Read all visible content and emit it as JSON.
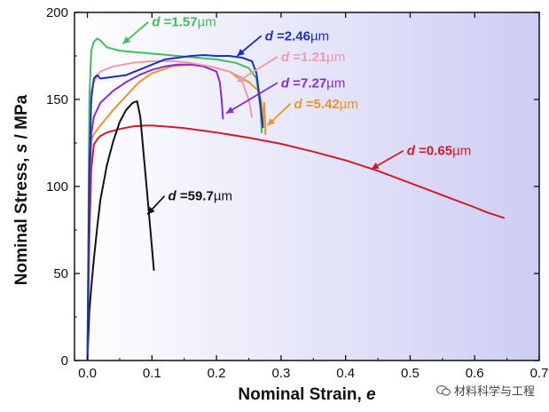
{
  "chart_data": {
    "type": "line",
    "title": "",
    "xlabel_prefix": "Nominal Strain, ",
    "xlabel_symbol": "e",
    "ylabel_prefix": "Nominal Stress, ",
    "ylabel_symbol": "s",
    "ylabel_suffix": " / MPa",
    "xlim": [
      -0.02,
      0.7
    ],
    "ylim": [
      0,
      200
    ],
    "xticks": [
      0.0,
      0.1,
      0.2,
      0.3,
      0.4,
      0.5,
      0.6,
      0.7
    ],
    "xtick_labels": [
      "0.0",
      "0.1",
      "0.2",
      "0.3",
      "0.4",
      "0.5",
      "0.6",
      "0.7"
    ],
    "yticks": [
      0,
      50,
      100,
      150,
      200
    ],
    "ytick_labels": [
      "0",
      "50",
      "100",
      "150",
      "200"
    ],
    "series": [
      {
        "name": "d =0.65µm",
        "label_prefix": "d",
        "label_value": " =0.65",
        "label_unit": "µm",
        "color": "#d11a2a",
        "x": [
          0,
          0.003,
          0.006,
          0.01,
          0.015,
          0.02,
          0.03,
          0.05,
          0.07,
          0.09,
          0.1,
          0.12,
          0.15,
          0.2,
          0.25,
          0.3,
          0.35,
          0.4,
          0.45,
          0.5,
          0.55,
          0.6,
          0.62,
          0.645
        ],
        "y": [
          0,
          70,
          110,
          124,
          127,
          129,
          131,
          133,
          134.5,
          135,
          135,
          134.5,
          133.5,
          131,
          128,
          124.5,
          120,
          115,
          109,
          102,
          95,
          88,
          85,
          82
        ]
      },
      {
        "name": "d =59.7µm",
        "label_prefix": "d",
        "label_value": " =59.7",
        "label_unit": "µm",
        "color": "#111111",
        "x": [
          0,
          0.003,
          0.006,
          0.01,
          0.015,
          0.02,
          0.03,
          0.04,
          0.05,
          0.06,
          0.07,
          0.077,
          0.082,
          0.088,
          0.094,
          0.1,
          0.103
        ],
        "y": [
          0,
          28,
          42,
          58,
          76,
          92,
          112,
          126,
          137,
          144,
          148,
          149,
          140,
          115,
          90,
          65,
          52
        ]
      },
      {
        "name": "d =5.42µm",
        "label_prefix": "d",
        "label_value": " =5.42",
        "label_unit": "µm",
        "color": "#e8952c",
        "x": [
          0,
          0.003,
          0.006,
          0.01,
          0.02,
          0.04,
          0.06,
          0.08,
          0.1,
          0.13,
          0.16,
          0.19,
          0.22,
          0.25,
          0.265,
          0.27,
          0.272,
          0.274,
          0.276
        ],
        "y": [
          0,
          100,
          126,
          130,
          135,
          144,
          152,
          160,
          165,
          169,
          170,
          169,
          166,
          160,
          155,
          148,
          135,
          148,
          130
        ]
      },
      {
        "name": "d =7.27µm",
        "label_prefix": "d",
        "label_value": " =7.27",
        "label_unit": "µm",
        "color": "#8a2ad3",
        "x": [
          0,
          0.003,
          0.006,
          0.01,
          0.02,
          0.04,
          0.06,
          0.08,
          0.1,
          0.12,
          0.14,
          0.16,
          0.18,
          0.2,
          0.205,
          0.208,
          0.21
        ],
        "y": [
          0,
          100,
          130,
          140,
          148,
          155,
          160,
          164,
          167,
          169,
          170,
          170,
          169,
          166,
          160,
          150,
          139
        ]
      },
      {
        "name": "d =1.21µm",
        "label_prefix": "d",
        "label_value": " =1.21",
        "label_unit": "µm",
        "color": "#f09aa8",
        "x": [
          0,
          0.003,
          0.006,
          0.01,
          0.015,
          0.02,
          0.04,
          0.07,
          0.1,
          0.13,
          0.16,
          0.19,
          0.22,
          0.24,
          0.25,
          0.255
        ],
        "y": [
          0,
          120,
          155,
          160,
          163,
          166,
          169,
          171,
          172,
          172,
          171,
          169,
          166,
          160,
          150,
          140
        ]
      },
      {
        "name": "d =1.57µm",
        "label_prefix": "d",
        "label_value": " =1.57",
        "label_unit": "µm",
        "color": "#3cbf5c",
        "x": [
          0,
          0.003,
          0.006,
          0.01,
          0.015,
          0.02,
          0.03,
          0.05,
          0.08,
          0.11,
          0.14,
          0.17,
          0.2,
          0.23,
          0.25,
          0.262,
          0.268,
          0.27
        ],
        "y": [
          0,
          150,
          178,
          183,
          185,
          184,
          180,
          178,
          177,
          176,
          175,
          174,
          173,
          171,
          168,
          162,
          145,
          131
        ]
      },
      {
        "name": "d =2.46µm",
        "label_prefix": "d",
        "label_value": " =2.46",
        "label_unit": "µm",
        "color": "#1b2fc0",
        "x": [
          0,
          0.003,
          0.006,
          0.01,
          0.015,
          0.02,
          0.04,
          0.06,
          0.08,
          0.1,
          0.12,
          0.14,
          0.16,
          0.18,
          0.2,
          0.22,
          0.24,
          0.255,
          0.262,
          0.267,
          0.27,
          0.272
        ],
        "y": [
          0,
          110,
          150,
          162,
          164,
          162,
          163,
          164,
          167,
          170,
          173,
          174,
          175,
          175.5,
          175,
          175,
          174,
          172,
          165,
          150,
          140,
          134
        ]
      }
    ],
    "annotations": [
      {
        "series": 5,
        "text_x": 0.1,
        "text_y": 192,
        "arrow_to_x": 0.055,
        "arrow_to_y": 182
      },
      {
        "series": 6,
        "text_x": 0.275,
        "text_y": 184,
        "arrow_to_x": 0.232,
        "arrow_to_y": 175
      },
      {
        "series": 4,
        "text_x": 0.3,
        "text_y": 172,
        "arrow_to_x": 0.232,
        "arrow_to_y": 160
      },
      {
        "series": 3,
        "text_x": 0.3,
        "text_y": 157,
        "arrow_to_x": 0.215,
        "arrow_to_y": 142
      },
      {
        "series": 2,
        "text_x": 0.32,
        "text_y": 145,
        "arrow_to_x": 0.279,
        "arrow_to_y": 135
      },
      {
        "series": 0,
        "text_x": 0.495,
        "text_y": 118,
        "arrow_to_x": 0.44,
        "arrow_to_y": 110
      },
      {
        "series": 1,
        "text_x": 0.125,
        "text_y": 92,
        "arrow_to_x": 0.093,
        "arrow_to_y": 84
      }
    ],
    "background_gradient": [
      "#ffffff",
      "#cdcdf4"
    ]
  },
  "watermark": {
    "text": "材料科学与工程"
  }
}
